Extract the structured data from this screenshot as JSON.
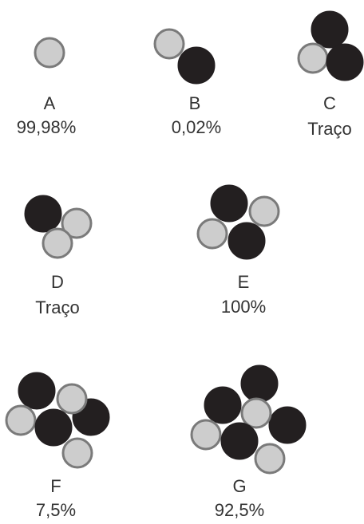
{
  "items": [
    {
      "label": "A",
      "value": "99,98%"
    },
    {
      "label": "B",
      "value": "0,02%"
    },
    {
      "label": "C",
      "value": "Traço"
    },
    {
      "label": "D",
      "value": "Traço"
    },
    {
      "label": "E",
      "value": "100%"
    },
    {
      "label": "F",
      "value": "7,5%"
    },
    {
      "label": "G",
      "value": "92,5%"
    }
  ]
}
